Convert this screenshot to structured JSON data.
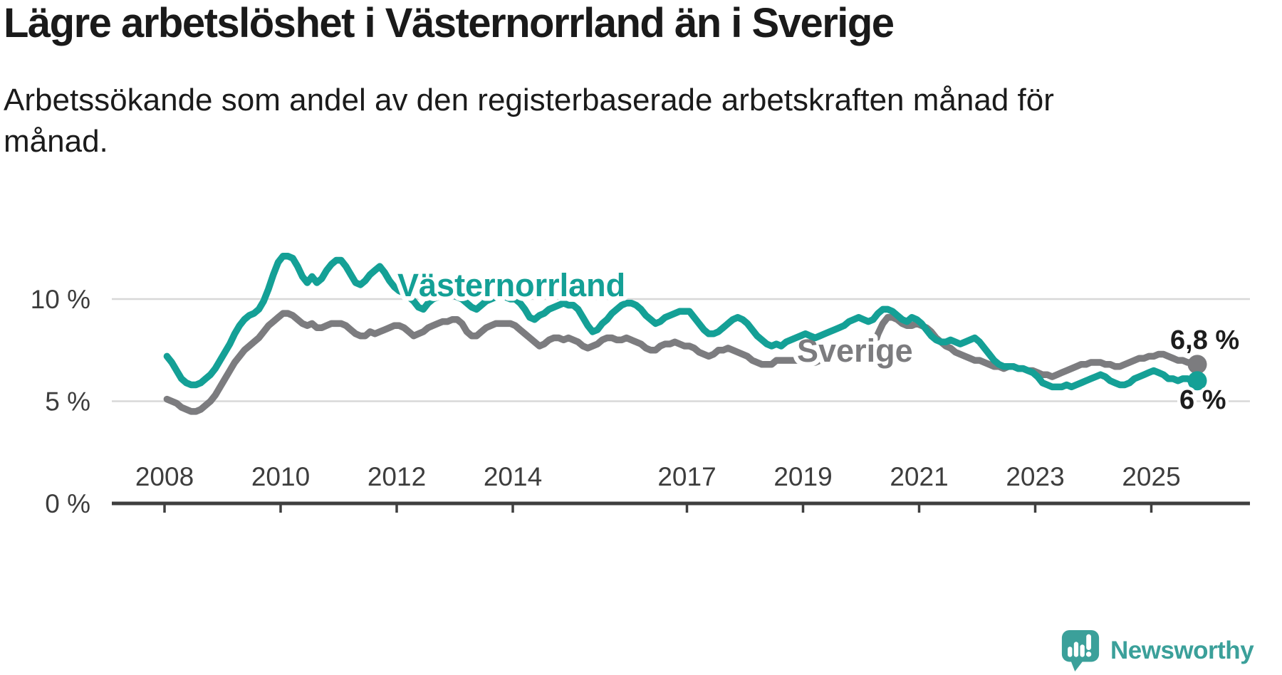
{
  "header": {
    "title": "Lägre arbetslöshet i Västernorrland än i Sverige",
    "subtitle": "Arbetssökande som andel av den registerbaserade arbetskraften månad för månad.",
    "subtitle_lines": [
      "Arbetssökande som andel av den registerbaserade arbetskraften månad för",
      "månad."
    ]
  },
  "branding": {
    "logo_text": "Newsworthy",
    "logo_color": "#3BA09A"
  },
  "colors": {
    "vasternorrland_line": "#14A096",
    "sverige_line": "#7C7C7F",
    "gridline": "#D8D8D8",
    "axis": "#3F3F3F",
    "axis_label": "#3D3D3D",
    "annotation_text": "#1D1D1D",
    "background": "#FFFFFF"
  },
  "chart_data": {
    "type": "line",
    "title": "Lägre arbetslöshet i Västernorrland än i Sverige",
    "subtitle": "Arbetssökande som andel av den registerbaserade arbetskraften månad för månad.",
    "unit": "%",
    "x_unit": "month",
    "x_start_year": 2008,
    "x_start_month": 1,
    "x_end_year": 2025,
    "x_end_month": 10,
    "x_tick_years": [
      2008,
      2010,
      2012,
      2014,
      2017,
      2019,
      2021,
      2023,
      2025
    ],
    "y_ticks": [
      {
        "value": 0,
        "label": "0 %"
      },
      {
        "value": 5,
        "label": "5 %"
      },
      {
        "value": 10,
        "label": "10 %"
      }
    ],
    "ylim": [
      0,
      13
    ],
    "grid": "horizontal",
    "legend_position": "inline-labels",
    "series": [
      {
        "name": "Sverige",
        "color": "#7C7C7F",
        "end_label": "6,8 %",
        "last_value": 6.8,
        "values": [
          5.1,
          5.0,
          4.9,
          4.7,
          4.6,
          4.5,
          4.5,
          4.6,
          4.8,
          5.0,
          5.3,
          5.7,
          6.1,
          6.5,
          6.9,
          7.2,
          7.5,
          7.7,
          7.9,
          8.1,
          8.4,
          8.7,
          8.9,
          9.1,
          9.3,
          9.3,
          9.2,
          9.0,
          8.8,
          8.7,
          8.8,
          8.6,
          8.6,
          8.7,
          8.8,
          8.8,
          8.8,
          8.7,
          8.5,
          8.3,
          8.2,
          8.2,
          8.4,
          8.3,
          8.4,
          8.5,
          8.6,
          8.7,
          8.7,
          8.6,
          8.4,
          8.2,
          8.3,
          8.4,
          8.6,
          8.7,
          8.8,
          8.9,
          8.9,
          9.0,
          9.0,
          8.8,
          8.4,
          8.2,
          8.2,
          8.4,
          8.6,
          8.7,
          8.8,
          8.8,
          8.8,
          8.8,
          8.7,
          8.5,
          8.3,
          8.1,
          7.9,
          7.7,
          7.8,
          8.0,
          8.1,
          8.1,
          8.0,
          8.1,
          8.0,
          7.9,
          7.7,
          7.6,
          7.7,
          7.8,
          8.0,
          8.1,
          8.1,
          8.0,
          8.0,
          8.1,
          8.0,
          7.9,
          7.8,
          7.6,
          7.5,
          7.5,
          7.7,
          7.8,
          7.8,
          7.9,
          7.8,
          7.7,
          7.7,
          7.6,
          7.4,
          7.3,
          7.2,
          7.3,
          7.5,
          7.5,
          7.6,
          7.5,
          7.4,
          7.3,
          7.2,
          7.0,
          6.9,
          6.8,
          6.8,
          6.8,
          7.0,
          7.0,
          7.0,
          7.0,
          7.0,
          7.0,
          7.0,
          6.9,
          6.9,
          7.0,
          7.0,
          7.1,
          7.2,
          7.2,
          7.2,
          7.3,
          7.3,
          7.4,
          7.4,
          7.4,
          7.6,
          8.3,
          8.8,
          9.1,
          9.1,
          9.0,
          8.8,
          8.7,
          8.7,
          8.8,
          8.7,
          8.6,
          8.4,
          8.1,
          7.9,
          7.7,
          7.6,
          7.4,
          7.3,
          7.2,
          7.1,
          7.0,
          7.0,
          6.9,
          6.8,
          6.7,
          6.7,
          6.6,
          6.7,
          6.7,
          6.6,
          6.6,
          6.5,
          6.5,
          6.4,
          6.3,
          6.3,
          6.2,
          6.3,
          6.4,
          6.5,
          6.6,
          6.7,
          6.8,
          6.8,
          6.9,
          6.9,
          6.9,
          6.8,
          6.8,
          6.7,
          6.7,
          6.8,
          6.9,
          7.0,
          7.1,
          7.1,
          7.2,
          7.2,
          7.3,
          7.3,
          7.2,
          7.1,
          7.0,
          7.0,
          6.9,
          6.9,
          6.8
        ]
      },
      {
        "name": "Västernorrland",
        "color": "#14A096",
        "end_label": "6 %",
        "last_value": 6.0,
        "values": [
          7.2,
          6.9,
          6.5,
          6.1,
          5.9,
          5.8,
          5.8,
          5.9,
          6.1,
          6.3,
          6.6,
          7.0,
          7.4,
          7.8,
          8.3,
          8.7,
          9.0,
          9.2,
          9.3,
          9.5,
          9.9,
          10.5,
          11.2,
          11.8,
          12.1,
          12.1,
          12.0,
          11.6,
          11.1,
          10.8,
          11.1,
          10.8,
          11.0,
          11.4,
          11.7,
          11.9,
          11.9,
          11.6,
          11.2,
          10.8,
          10.7,
          10.9,
          11.2,
          11.4,
          11.6,
          11.3,
          10.9,
          10.6,
          10.4,
          10.3,
          10.1,
          9.9,
          9.6,
          9.5,
          9.8,
          10.0,
          10.1,
          10.2,
          10.3,
          10.2,
          10.1,
          10.0,
          9.8,
          9.6,
          9.5,
          9.7,
          9.9,
          10.0,
          10.1,
          10.2,
          10.1,
          10.0,
          10.0,
          9.8,
          9.5,
          9.1,
          9.0,
          9.2,
          9.3,
          9.5,
          9.6,
          9.7,
          9.8,
          9.7,
          9.7,
          9.5,
          9.1,
          8.7,
          8.4,
          8.5,
          8.8,
          9.0,
          9.3,
          9.5,
          9.7,
          9.8,
          9.8,
          9.7,
          9.5,
          9.2,
          9.0,
          8.8,
          8.9,
          9.1,
          9.2,
          9.3,
          9.4,
          9.4,
          9.4,
          9.1,
          8.8,
          8.5,
          8.3,
          8.3,
          8.4,
          8.6,
          8.8,
          9.0,
          9.1,
          9.0,
          8.8,
          8.5,
          8.2,
          8.0,
          7.8,
          7.7,
          7.8,
          7.7,
          7.9,
          8.0,
          8.1,
          8.2,
          8.3,
          8.2,
          8.1,
          8.2,
          8.3,
          8.4,
          8.5,
          8.6,
          8.7,
          8.9,
          9.0,
          9.1,
          9.0,
          8.9,
          9.0,
          9.3,
          9.5,
          9.5,
          9.4,
          9.2,
          9.0,
          8.9,
          9.1,
          9.0,
          8.8,
          8.5,
          8.2,
          8.0,
          7.9,
          7.9,
          8.0,
          7.9,
          7.8,
          7.9,
          8.0,
          8.1,
          7.9,
          7.6,
          7.3,
          7.0,
          6.8,
          6.7,
          6.7,
          6.7,
          6.6,
          6.6,
          6.5,
          6.4,
          6.2,
          5.9,
          5.8,
          5.7,
          5.7,
          5.7,
          5.8,
          5.7,
          5.8,
          5.9,
          6.0,
          6.1,
          6.2,
          6.3,
          6.2,
          6.0,
          5.9,
          5.8,
          5.8,
          5.9,
          6.1,
          6.2,
          6.3,
          6.4,
          6.5,
          6.4,
          6.3,
          6.1,
          6.1,
          6.0,
          6.1,
          6.1,
          6.0,
          6.0
        ]
      }
    ]
  }
}
